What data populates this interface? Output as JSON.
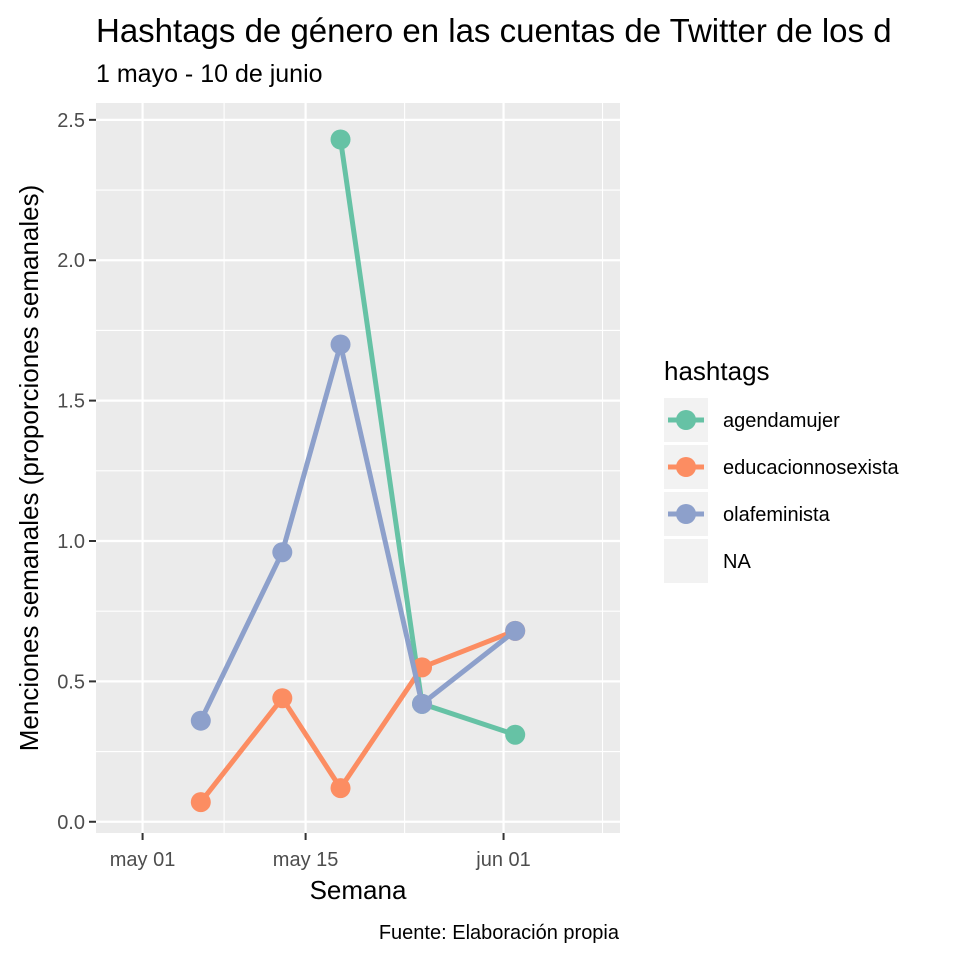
{
  "chart_data": {
    "type": "line",
    "title": "Hashtags de género en las cuentas de Twitter de los d",
    "subtitle": "1 mayo - 10 de junio",
    "xlabel": "Semana",
    "ylabel": "Menciones semanales (proporciones semanales)",
    "caption": "Fuente: Elaboración propia",
    "x_ticks": [
      {
        "label": "may 01",
        "date": "2020-05-01"
      },
      {
        "label": "may 15",
        "date": "2020-05-15"
      },
      {
        "label": "jun 01",
        "date": "2020-06-01"
      }
    ],
    "y_ticks": [
      "0.0",
      "0.5",
      "1.0",
      "1.5",
      "2.0",
      "2.5"
    ],
    "xlim": [
      "2020-04-27",
      "2020-06-11"
    ],
    "ylim": [
      -0.04,
      2.56
    ],
    "grid": true,
    "legend": {
      "title": "hashtags",
      "placement": "right",
      "entries": [
        "agendamujer",
        "educacionnosexista",
        "olafeminista",
        "NA"
      ]
    },
    "series": [
      {
        "name": "agendamujer",
        "color": "#66C2A5",
        "points": [
          {
            "x": "2020-05-18",
            "y": 2.43
          },
          {
            "x": "2020-05-25",
            "y": 0.42
          },
          {
            "x": "2020-06-02",
            "y": 0.31
          }
        ]
      },
      {
        "name": "educacionnosexista",
        "color": "#FC8D62",
        "points": [
          {
            "x": "2020-05-06",
            "y": 0.07
          },
          {
            "x": "2020-05-13",
            "y": 0.44
          },
          {
            "x": "2020-05-18",
            "y": 0.12
          },
          {
            "x": "2020-05-25",
            "y": 0.55
          },
          {
            "x": "2020-06-02",
            "y": 0.68
          }
        ]
      },
      {
        "name": "olafeminista",
        "color": "#8DA0CB",
        "points": [
          {
            "x": "2020-05-06",
            "y": 0.36
          },
          {
            "x": "2020-05-13",
            "y": 0.96
          },
          {
            "x": "2020-05-18",
            "y": 1.7
          },
          {
            "x": "2020-05-25",
            "y": 0.42
          },
          {
            "x": "2020-06-02",
            "y": 0.68
          }
        ]
      }
    ]
  },
  "colors": {
    "panel_background": "#EBEBEB",
    "grid_line": "#FFFFFF",
    "legend_key_background": "#F2F2F2"
  }
}
